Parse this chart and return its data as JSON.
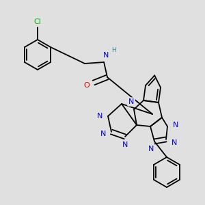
{
  "bg_color": "#e0e0e0",
  "atom_colors": {
    "C": "#000000",
    "N": "#0000cc",
    "O": "#cc0000",
    "Cl": "#00bb00",
    "H": "#448888"
  },
  "bond_lw": 1.3,
  "font_size": 8.0,
  "dpi": 100
}
